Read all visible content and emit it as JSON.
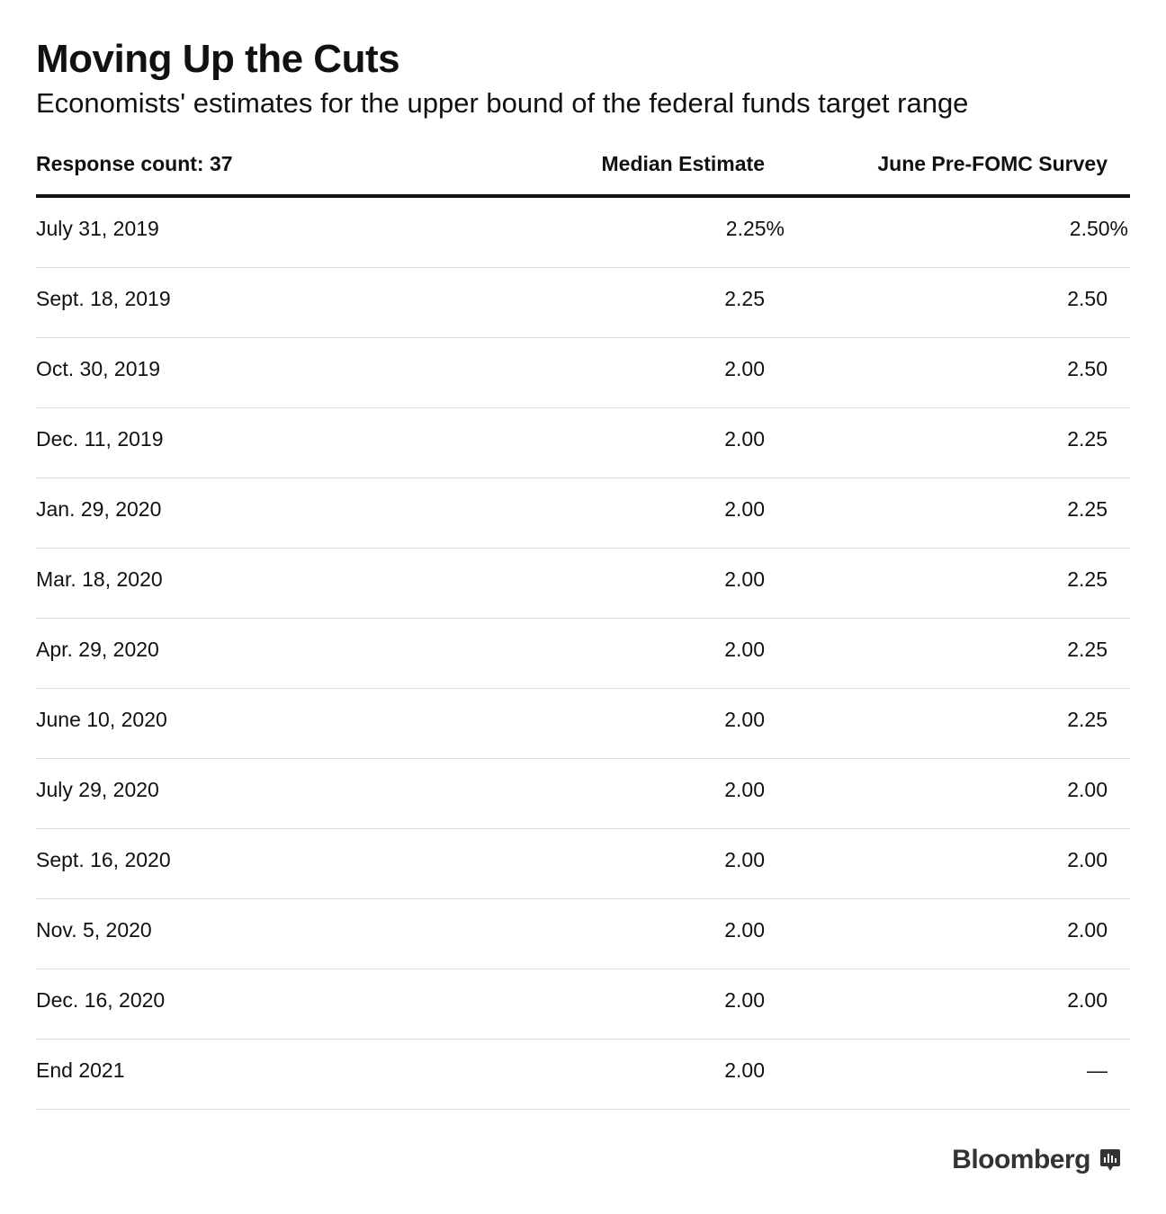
{
  "title": "Moving Up the Cuts",
  "subtitle": "Economists' estimates for the upper bound of the federal funds target range",
  "chart_data": {
    "type": "table",
    "title": "Moving Up the Cuts",
    "subtitle": "Economists' estimates for the upper bound of the federal funds target range",
    "columns": [
      "Response count: 37",
      "Median Estimate",
      "June Pre-FOMC Survey"
    ],
    "rows": [
      {
        "date": "July 31, 2019",
        "median": "2.25%",
        "june": "2.50%"
      },
      {
        "date": "Sept. 18, 2019",
        "median": "2.25",
        "june": "2.50"
      },
      {
        "date": "Oct. 30, 2019",
        "median": "2.00",
        "june": "2.50"
      },
      {
        "date": "Dec. 11, 2019",
        "median": "2.00",
        "june": "2.25"
      },
      {
        "date": "Jan. 29, 2020",
        "median": "2.00",
        "june": "2.25"
      },
      {
        "date": "Mar. 18, 2020",
        "median": "2.00",
        "june": "2.25"
      },
      {
        "date": "Apr. 29, 2020",
        "median": "2.00",
        "june": "2.25"
      },
      {
        "date": "June 10, 2020",
        "median": "2.00",
        "june": "2.25"
      },
      {
        "date": "July 29, 2020",
        "median": "2.00",
        "june": "2.00"
      },
      {
        "date": "Sept. 16, 2020",
        "median": "2.00",
        "june": "2.00"
      },
      {
        "date": "Nov. 5, 2020",
        "median": "2.00",
        "june": "2.00"
      },
      {
        "date": "Dec. 16, 2020",
        "median": "2.00",
        "june": "2.00"
      },
      {
        "date": "End 2021",
        "median": "2.00",
        "june": "—"
      }
    ]
  },
  "source_logo": {
    "text": "Bloomberg",
    "icon": "bloomberg-chart-icon",
    "color": "#333333"
  }
}
